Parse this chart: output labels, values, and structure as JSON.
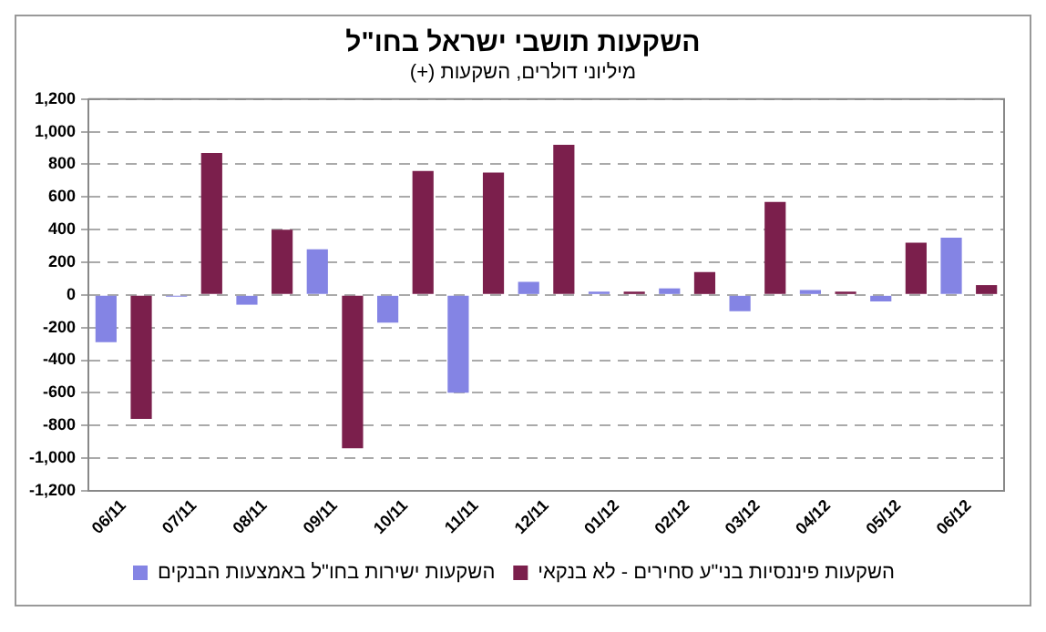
{
  "chart_data": {
    "type": "bar",
    "title": "השקעות תושבי ישראל בחו\"ל",
    "subtitle": "מיליוני דולרים, השקעות (+)",
    "categories": [
      "06/11",
      "07/11",
      "08/11",
      "09/11",
      "10/11",
      "11/11",
      "12/11",
      "01/12",
      "02/12",
      "03/12",
      "04/12",
      "05/12",
      "06/12"
    ],
    "series": [
      {
        "name": "השקעות ישירות בחו\"ל באמצעות הבנקים",
        "color": "#8484e4",
        "values": [
          -290,
          -10,
          -60,
          280,
          -170,
          -600,
          80,
          20,
          40,
          -100,
          30,
          -40,
          350
        ]
      },
      {
        "name": "השקעות פיננסיות בני\"ע סחירים - לא בנקאי",
        "color": "#7b1f4c",
        "values": [
          -760,
          870,
          400,
          -940,
          760,
          750,
          920,
          20,
          140,
          570,
          20,
          320,
          60
        ]
      }
    ],
    "ylim": [
      -1200,
      1200
    ],
    "yticks": [
      {
        "value": -1200,
        "label": "-1,200"
      },
      {
        "value": -1000,
        "label": "-1,000"
      },
      -800,
      -600,
      -400,
      -200,
      0,
      200,
      400,
      600,
      800,
      {
        "value": 1000,
        "label": "1,000"
      },
      {
        "value": 1200,
        "label": "1,200"
      }
    ],
    "grid": "y",
    "legend": "bottom"
  }
}
